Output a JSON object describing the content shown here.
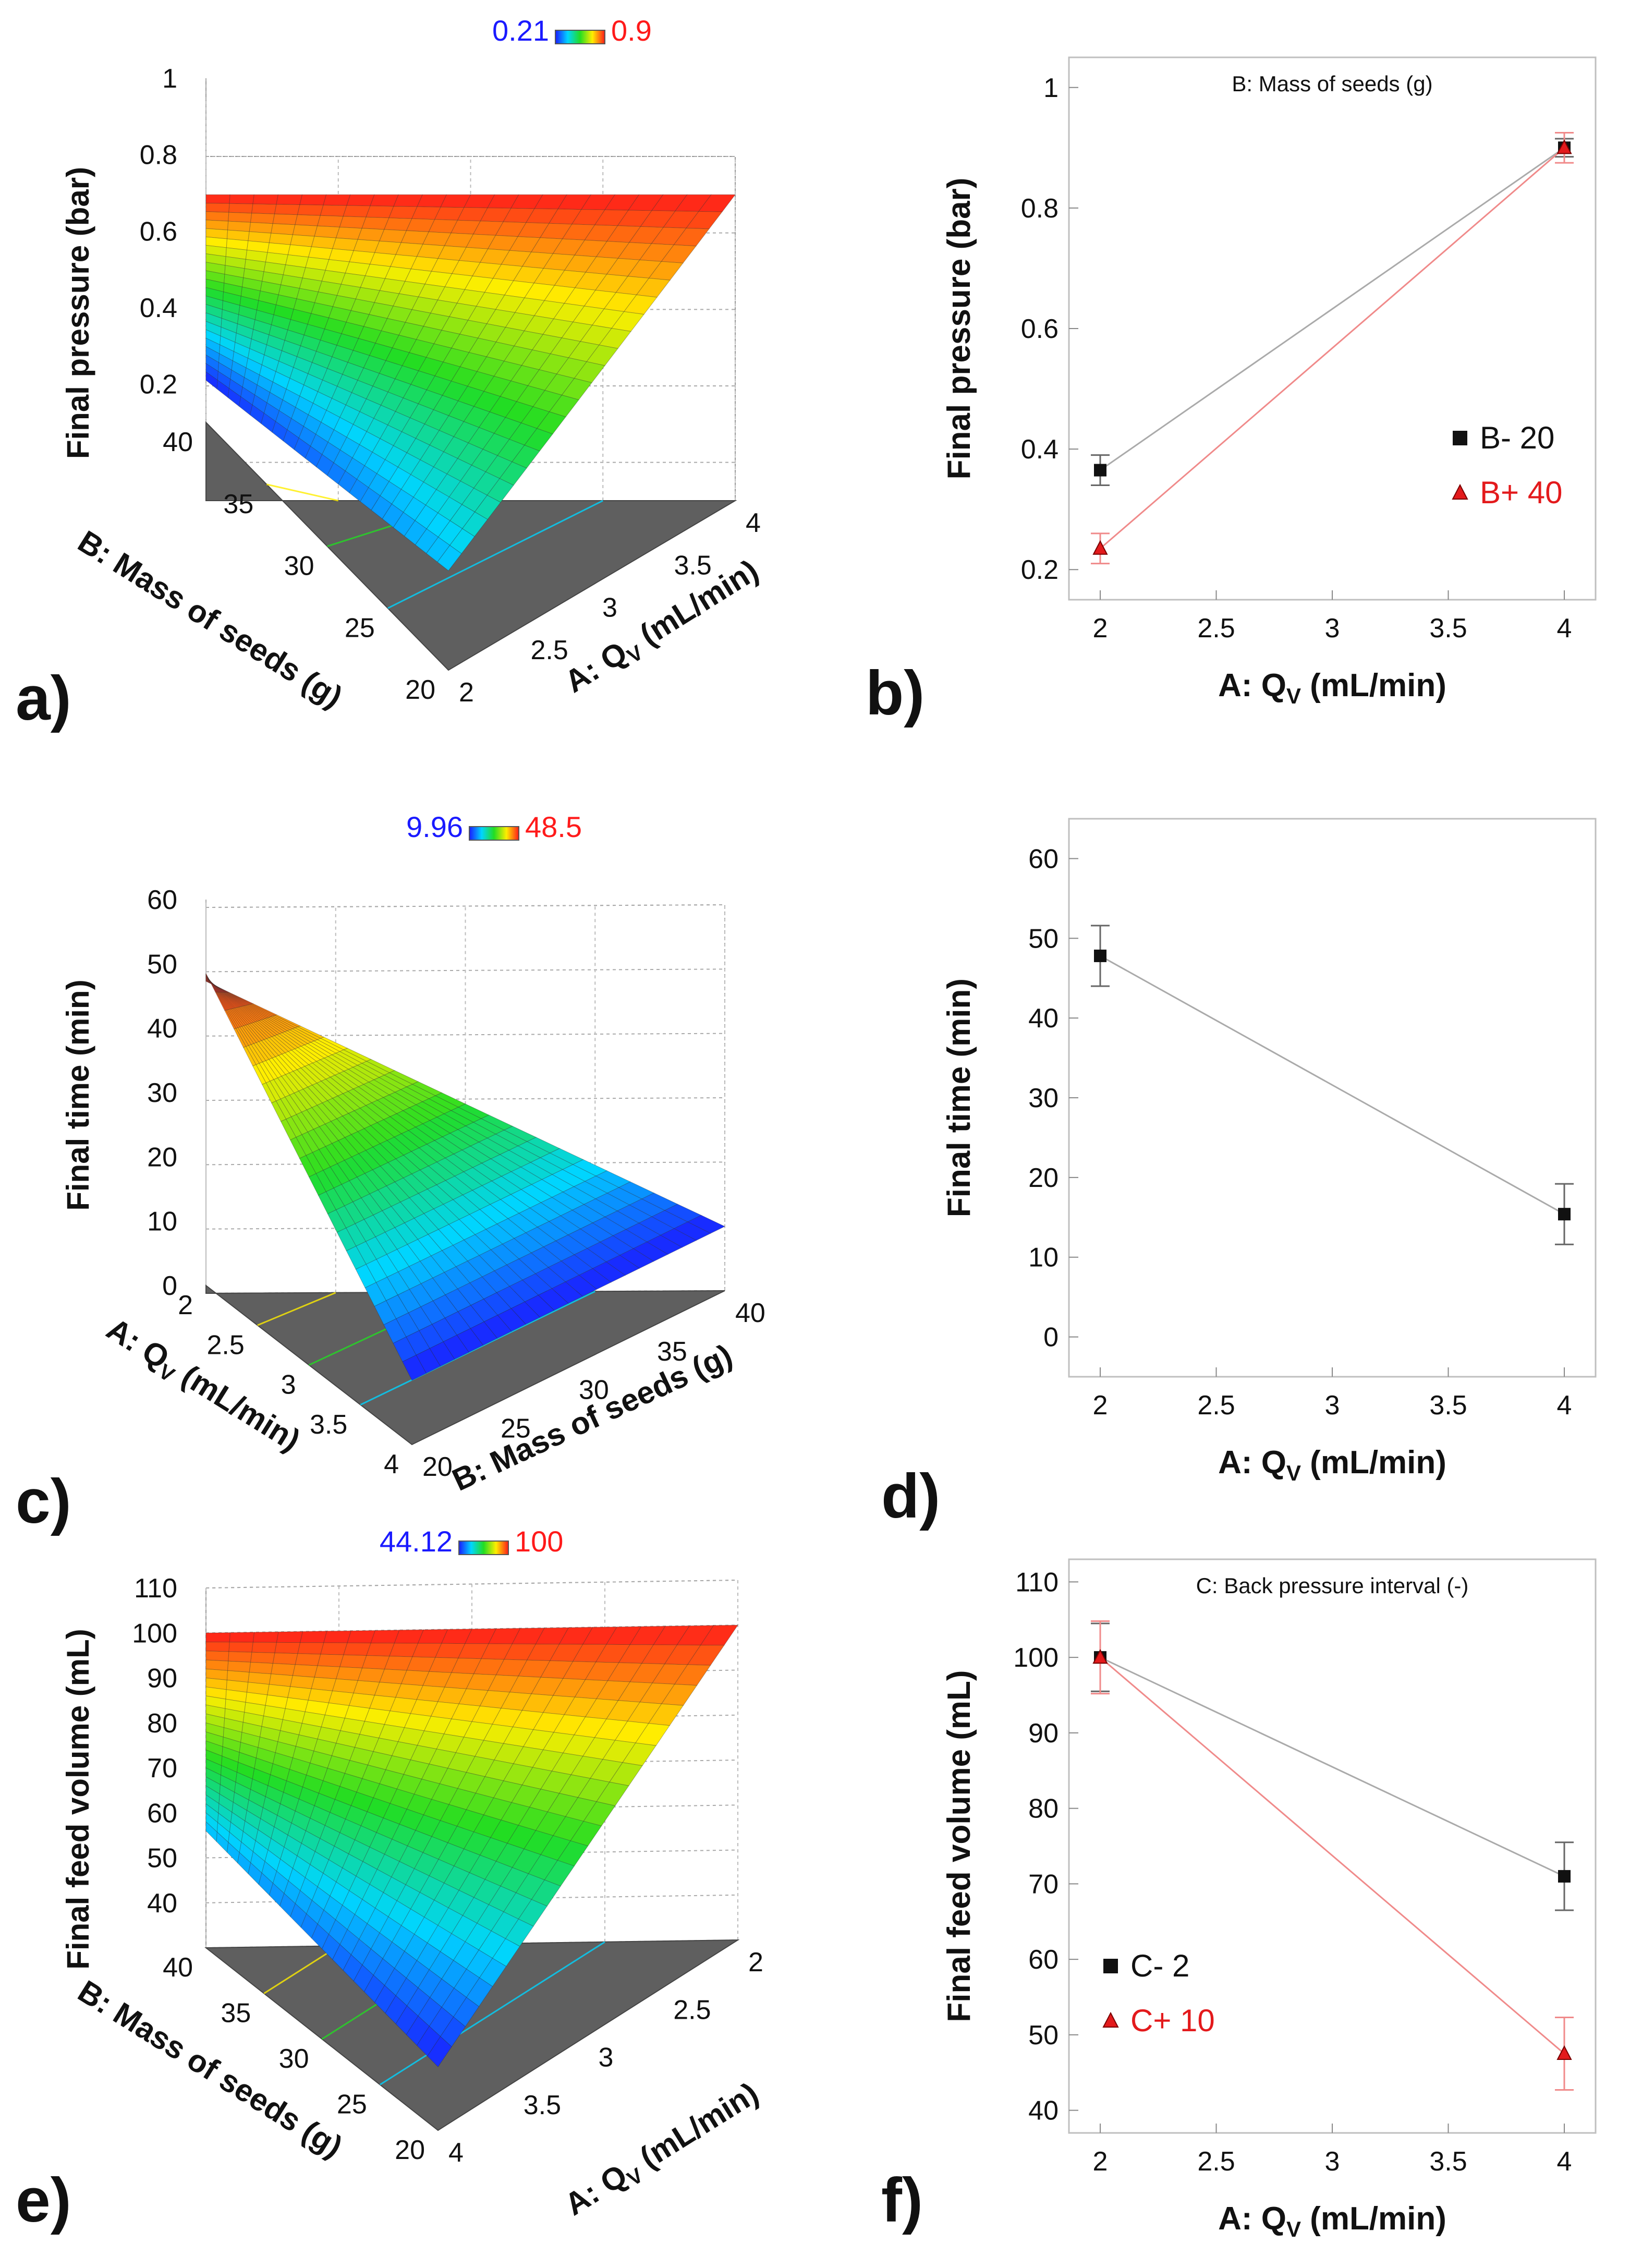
{
  "panel_labels": [
    "a)",
    "b)",
    "c)",
    "d)",
    "e)",
    "f)"
  ],
  "chart_data": [
    {
      "panel": "a)",
      "type": "surface3d",
      "colorbar": {
        "min_label": "0.21",
        "max_label": "0.9",
        "min_color": "#1a1aff",
        "max_color": "#ff1a1a"
      },
      "zlabel": "Final pressure (bar)",
      "z_ticks": [
        "0.2",
        "0.4",
        "0.6",
        "0.8",
        "1"
      ],
      "zlim": [
        0.1,
        1
      ],
      "axis_A": {
        "label_prefix": "A: Q",
        "label_sub": "V",
        "label_suffix": " (mL/min)",
        "ticks": [
          "2",
          "2.5",
          "3",
          "3.5",
          "4"
        ],
        "range": [
          2,
          4
        ]
      },
      "axis_B": {
        "label": "B: Mass of seeds (g)",
        "ticks": [
          "20",
          "25",
          "30",
          "35",
          "40"
        ],
        "range": [
          20,
          40
        ]
      },
      "corners": {
        "A2_B20": 0.36,
        "A2_B40": 0.21,
        "A4_B20": 0.9,
        "A4_B40": 0.9
      }
    },
    {
      "panel": "b)",
      "type": "line",
      "title": "B: Mass of seeds (g)",
      "xlabel_prefix": "A: Q",
      "xlabel_sub": "V",
      "xlabel_suffix": " (mL/min)",
      "ylabel": "Final pressure (bar)",
      "x_ticks": [
        "2",
        "2.5",
        "3",
        "3.5",
        "4"
      ],
      "y_ticks": [
        "0.2",
        "0.4",
        "0.6",
        "0.8",
        "1"
      ],
      "xlim": [
        2,
        4
      ],
      "ylim": [
        0.15,
        1.05
      ],
      "series": [
        {
          "name": "B- 20",
          "marker": "square",
          "color": "#111111",
          "line_color": "#aaaaaa",
          "x": [
            2,
            4
          ],
          "y": [
            0.365,
            0.9
          ],
          "err": [
            0.025,
            0.015
          ]
        },
        {
          "name": "B+ 40",
          "marker": "triangle",
          "color": "#e31a1c",
          "line_color": "#f08a8a",
          "x": [
            2,
            4
          ],
          "y": [
            0.235,
            0.9
          ],
          "err": [
            0.025,
            0.025
          ]
        }
      ],
      "legend": "bottom-right"
    },
    {
      "panel": "c)",
      "type": "surface3d",
      "colorbar": {
        "min_label": "9.96",
        "max_label": "48.5",
        "min_color": "#1a1aff",
        "max_color": "#ff1a1a"
      },
      "zlabel": "Final time (min)",
      "z_ticks": [
        "0",
        "10",
        "20",
        "30",
        "40",
        "50",
        "60"
      ],
      "zlim": [
        0,
        60
      ],
      "axis_A": {
        "label_prefix": "A: Q",
        "label_sub": "V",
        "label_suffix": " (mL/min)",
        "ticks": [
          "2",
          "2.5",
          "3",
          "3.5",
          "4"
        ],
        "range": [
          2,
          4
        ]
      },
      "axis_B": {
        "label": "B: Mass of seeds (g)",
        "ticks": [
          "20",
          "25",
          "30",
          "35",
          "40"
        ],
        "range": [
          20,
          40
        ]
      },
      "corners": {
        "A2_B20": 48.5,
        "A2_B40": 48.5,
        "A4_B20": 10,
        "A4_B40": 10
      }
    },
    {
      "panel": "d)",
      "type": "line",
      "title": "",
      "xlabel_prefix": "A: Q",
      "xlabel_sub": "V",
      "xlabel_suffix": " (mL/min)",
      "ylabel": "Final time (min)",
      "x_ticks": [
        "2",
        "2.5",
        "3",
        "3.5",
        "4"
      ],
      "y_ticks": [
        "0",
        "10",
        "20",
        "30",
        "40",
        "50",
        "60"
      ],
      "xlim": [
        2,
        4
      ],
      "ylim": [
        -5,
        65
      ],
      "series": [
        {
          "name": "",
          "marker": "square",
          "color": "#111111",
          "line_color": "#aaaaaa",
          "x": [
            2,
            4
          ],
          "y": [
            47.8,
            15.4
          ],
          "err": [
            3.8,
            3.8
          ]
        }
      ]
    },
    {
      "panel": "e)",
      "type": "surface3d",
      "colorbar": {
        "min_label": "44.12",
        "max_label": "100",
        "min_color": "#1a1aff",
        "max_color": "#ff1a1a"
      },
      "zlabel": "Final feed volume (mL)",
      "z_ticks": [
        "40",
        "50",
        "60",
        "70",
        "80",
        "90",
        "100",
        "110"
      ],
      "zlim": [
        30,
        110
      ],
      "axis_A": {
        "label_prefix": "A: Q",
        "label_sub": "V",
        "label_suffix": " (mL/min)",
        "ticks": [
          "2",
          "2.5",
          "3",
          "3.5",
          "4"
        ],
        "range": [
          2,
          4
        ]
      },
      "axis_B": {
        "label": "B: Mass of seeds (g)",
        "ticks": [
          "20",
          "25",
          "30",
          "35",
          "40"
        ],
        "range": [
          20,
          40
        ]
      },
      "corners": {
        "A2_B20": 100,
        "A2_B40": 100,
        "A4_B20": 56,
        "A4_B40": 44.12
      }
    },
    {
      "panel": "f)",
      "type": "line",
      "title": "C: Back pressure interval (-)",
      "xlabel_prefix": "A: Q",
      "xlabel_sub": "V",
      "xlabel_suffix": " (mL/min)",
      "ylabel": "Final feed volume (mL)",
      "x_ticks": [
        "2",
        "2.5",
        "3",
        "3.5",
        "4"
      ],
      "y_ticks": [
        "40",
        "50",
        "60",
        "70",
        "80",
        "90",
        "100",
        "110"
      ],
      "xlim": [
        2,
        4
      ],
      "ylim": [
        37,
        113
      ],
      "series": [
        {
          "name": "C- 2",
          "marker": "square",
          "color": "#111111",
          "line_color": "#aaaaaa",
          "x": [
            2,
            4
          ],
          "y": [
            100,
            71
          ],
          "err": [
            4.5,
            4.5
          ]
        },
        {
          "name": "C+ 10",
          "marker": "triangle",
          "color": "#e31a1c",
          "line_color": "#f08a8a",
          "x": [
            2,
            4
          ],
          "y": [
            100,
            47.5
          ],
          "err": [
            4.8,
            4.8
          ]
        }
      ],
      "legend": "bottom-left"
    }
  ]
}
